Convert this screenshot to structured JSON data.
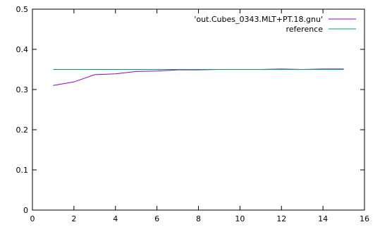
{
  "chart_data": {
    "type": "line",
    "title": "",
    "xlabel": "",
    "ylabel": "",
    "xlim": [
      0,
      16
    ],
    "ylim": [
      0,
      0.5
    ],
    "x_ticks": [
      0,
      2,
      4,
      6,
      8,
      10,
      12,
      14,
      16
    ],
    "y_ticks": [
      0,
      0.1,
      0.2,
      0.3,
      0.4,
      0.5
    ],
    "x_tick_labels": [
      "0",
      "2",
      "4",
      "6",
      "8",
      "10",
      "12",
      "14",
      "16"
    ],
    "y_tick_labels": [
      "0",
      "0.1",
      "0.2",
      "0.3",
      "0.4",
      "0.5"
    ],
    "grid": false,
    "legend_position": "top-right",
    "series": [
      {
        "name": "'out.Cubes_0343.MLT+PT.18.gnu'",
        "color": "#9400d3",
        "x": [
          1,
          2,
          3,
          4,
          5,
          6,
          7,
          8,
          9,
          10,
          11,
          12,
          13,
          14,
          15
        ],
        "y": [
          0.31,
          0.319,
          0.337,
          0.339,
          0.345,
          0.346,
          0.349,
          0.349,
          0.35,
          0.35,
          0.35,
          0.351,
          0.35,
          0.351,
          0.351
        ]
      },
      {
        "name": "reference",
        "color": "#009e73",
        "x": [
          1,
          15
        ],
        "y": [
          0.35,
          0.35
        ]
      }
    ]
  }
}
